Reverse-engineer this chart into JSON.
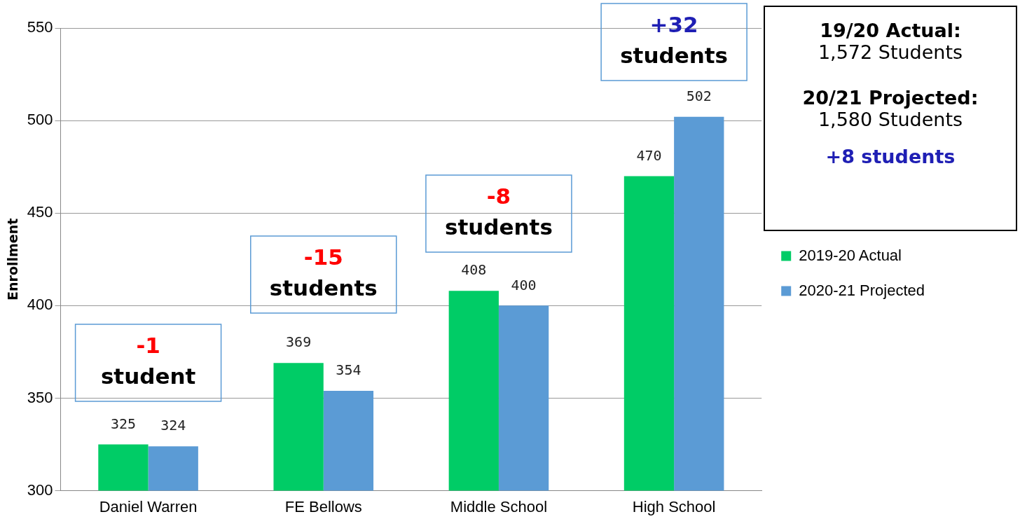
{
  "chart_data": {
    "type": "bar",
    "ylabel": "Enrollment",
    "categories": [
      "Daniel Warren",
      "FE Bellows",
      "Middle School",
      "High School"
    ],
    "series": [
      {
        "name": "2019-20 Actual",
        "color": "#00cc66",
        "values": [
          325,
          369,
          408,
          470
        ]
      },
      {
        "name": "2020-21 Projected",
        "color": "#5b9bd5",
        "values": [
          324,
          354,
          400,
          502
        ]
      }
    ],
    "ylim": [
      300,
      550
    ],
    "yticks": [
      300,
      350,
      400,
      450,
      500,
      550
    ],
    "grid": "y",
    "legend": "right",
    "data_labels": true,
    "annotations": [
      "-1 student",
      "-15 students",
      "-8 students",
      "+32 students",
      "19/20 Actual:",
      "1,572 Students",
      "20/21 Projected:",
      "1,580 Students",
      "+8 students"
    ]
  }
}
